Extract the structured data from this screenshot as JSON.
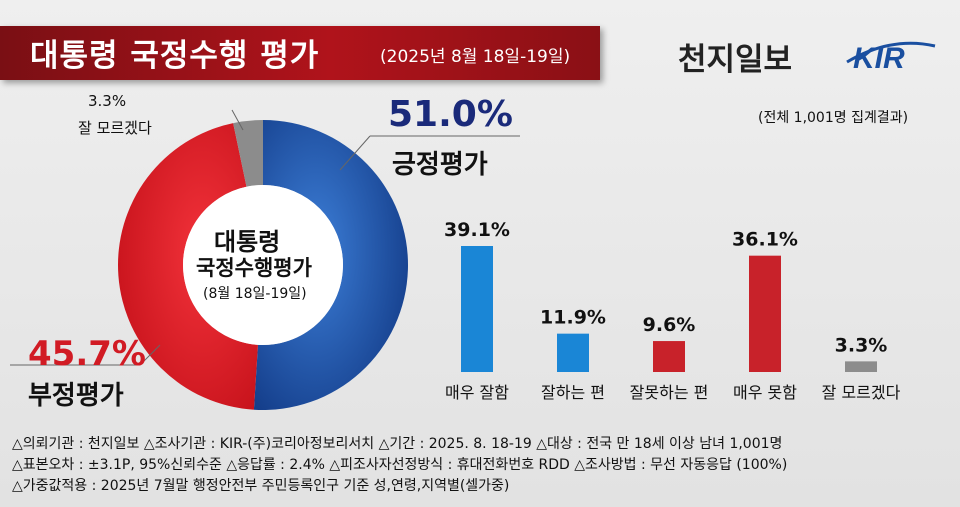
{
  "header": {
    "title": "대통령 국정수행 평가",
    "subtitle": "(2025년 8월 18일-19일)",
    "brand": "천지일보",
    "logo_text": "KIR",
    "note": "(전체 1,001명 집계결과)"
  },
  "donut": {
    "center_line1": "대통령",
    "center_line2": "국정수행평가",
    "center_line3": "(8월 18일-19일)",
    "positive": {
      "label": "긍정평가",
      "pct_text": "51.0%",
      "value": 51.0,
      "color": "#1f4fa3"
    },
    "negative": {
      "label": "부정평가",
      "pct_text": "45.7%",
      "value": 45.7,
      "color": "#d11b24"
    },
    "dontknow": {
      "label": "잘 모르겠다",
      "pct_text": "3.3%",
      "value": 3.3,
      "color": "#8c8c8c"
    }
  },
  "chart_data": {
    "type": "bar",
    "categories": [
      "매우 잘함",
      "잘하는 편",
      "잘못하는 편",
      "매우 못함",
      "잘 모르겠다"
    ],
    "values": [
      39.1,
      11.9,
      9.6,
      36.1,
      3.3
    ],
    "value_labels": [
      "39.1%",
      "11.9%",
      "9.6%",
      "36.1%",
      "3.3%"
    ],
    "colors": [
      "#1a86d6",
      "#1a86d6",
      "#c8222a",
      "#c8222a",
      "#8c8c8c"
    ]
  },
  "footer": {
    "line1": "△의뢰기관 : 천지일보    △조사기관 : KIR-(주)코리아정보리서치   △기간 : 2025. 8. 18-19  △대상 : 전국 만 18세 이상 남녀 1,001명",
    "line2": "△표본오차 : ±3.1P, 95%신뢰수준  △응답률 : 2.4%  △피조사자선정방식 : 휴대전화번호 RDD   △조사방법 : 무선 자동응답 (100%)",
    "line3": "△가중값적용 : 2025년 7월말 행정안전부 주민등록인구 기준 성,연령,지역별(셀가중)"
  }
}
